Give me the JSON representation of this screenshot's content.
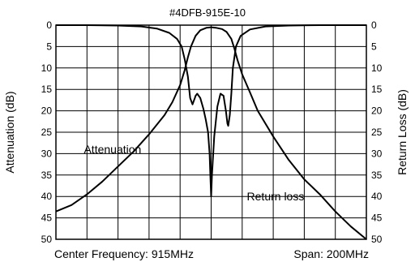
{
  "chart_data": {
    "type": "line",
    "title": "#4DFB-915E-10",
    "ylabel_left": "Attenuation (dB)",
    "ylabel_right": "Return Loss (dB)",
    "footer_left": "Center Frequency: 915MHz",
    "footer_right": "Span: 200MHz",
    "xlim": [
      815,
      1015
    ],
    "ylim": [
      0,
      50
    ],
    "y_inverted": true,
    "grid": true,
    "x_divisions": 10,
    "yticks": [
      "0",
      "5",
      "10",
      "15",
      "20",
      "25",
      "30",
      "35",
      "40",
      "45",
      "50"
    ],
    "series": [
      {
        "name": "Attenuation",
        "color": "#000000",
        "x": [
          815,
          825,
          835,
          845,
          855,
          865,
          875,
          885,
          890,
          895,
          898,
          900,
          902,
          905,
          908,
          912,
          915,
          918,
          922,
          925,
          928,
          930,
          932,
          935,
          940,
          945,
          955,
          965,
          975,
          985,
          995,
          1005,
          1015
        ],
        "y": [
          43.5,
          42,
          39.5,
          36.5,
          33,
          29.5,
          25.5,
          21,
          18,
          14,
          10.5,
          7.5,
          5,
          2.5,
          1.2,
          0.6,
          0.5,
          0.6,
          0.9,
          1.6,
          3.2,
          5.5,
          8.2,
          11.5,
          15.7,
          20,
          26,
          31.5,
          36,
          39.5,
          43.5,
          47,
          50
        ]
      },
      {
        "name": "Return loss",
        "color": "#000000",
        "x": [
          815,
          835,
          855,
          870,
          880,
          888,
          893,
          896,
          898,
          900,
          901.5,
          903,
          904.5,
          905,
          906,
          908,
          910,
          911.5,
          913,
          914,
          914.5,
          915,
          915.5,
          917,
          919,
          921,
          923,
          924.5,
          925.5,
          926,
          927,
          928,
          929,
          931,
          934,
          940,
          950,
          965,
          985,
          1015
        ],
        "y": [
          0,
          0,
          0.1,
          0.3,
          0.8,
          1.8,
          3.2,
          5,
          8,
          12,
          17,
          18.5,
          17,
          16.5,
          16,
          17,
          19.5,
          22,
          25,
          30,
          35,
          40,
          35,
          26,
          19,
          16,
          16.5,
          20,
          23,
          23.5,
          21,
          16,
          10,
          5,
          2.5,
          1,
          0.3,
          0.1,
          0,
          0
        ]
      }
    ],
    "annotations": [
      {
        "text": "Attenuation",
        "x": 833,
        "y": 29
      },
      {
        "text": "Return loss",
        "x": 938,
        "y": 40
      }
    ]
  }
}
